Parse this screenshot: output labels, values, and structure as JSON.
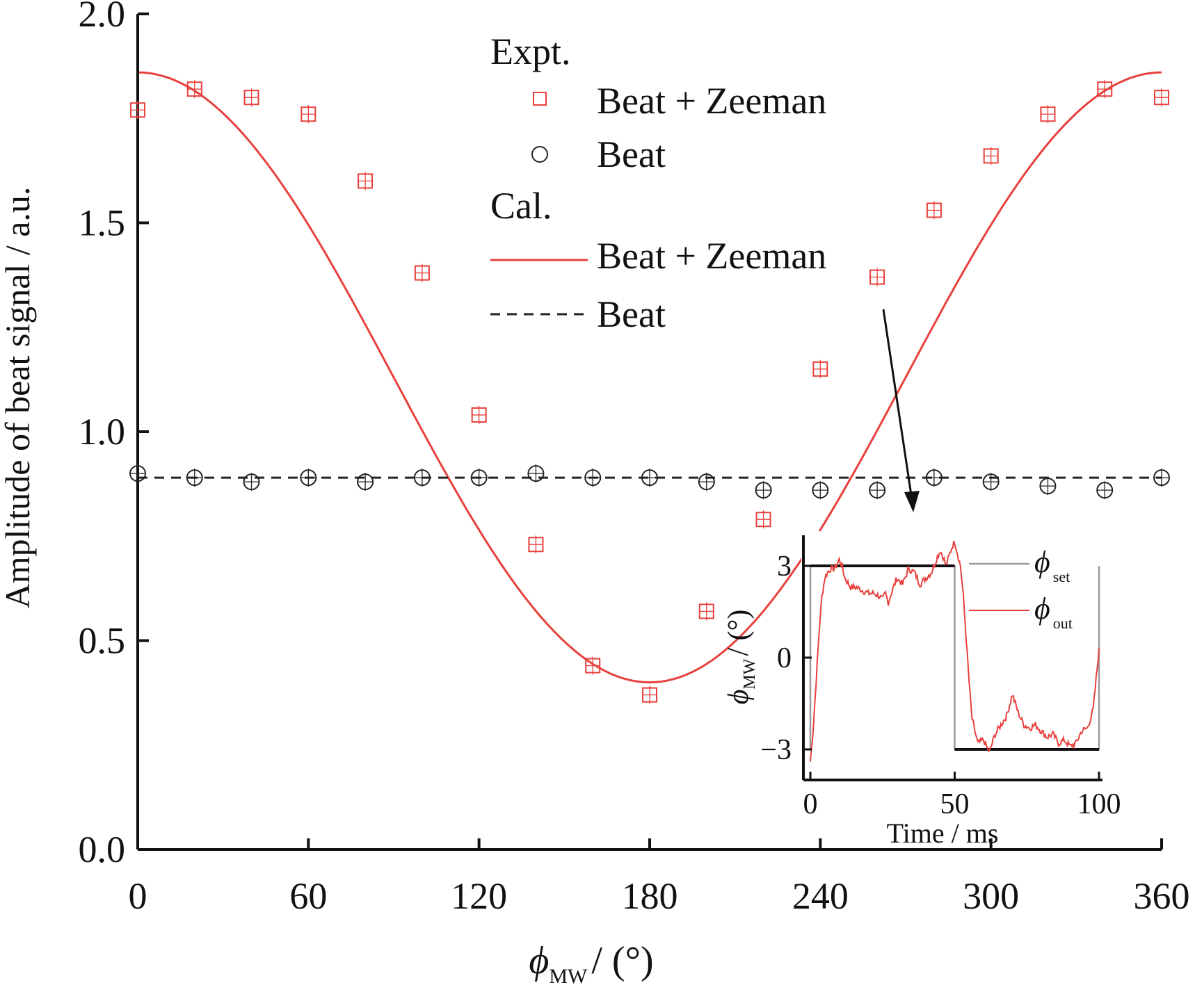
{
  "colors": {
    "zeeman": "#e8403c",
    "beat": "#222222",
    "axis": "#111111",
    "inset_set": "#9a9a9a"
  },
  "chart_data": [
    {
      "type": "scatter",
      "ylabel": "Amplitude of beat signal / a.u.",
      "xlabel_symbol": "ϕ",
      "xlabel_sub": "MW",
      "xlabel_unit": "/ (°)",
      "xlim": [
        0,
        360
      ],
      "ylim": [
        0,
        2.0
      ],
      "xticks": [
        0,
        60,
        120,
        180,
        240,
        300,
        360
      ],
      "yticks": [
        0.0,
        0.5,
        1.0,
        1.5,
        2.0
      ],
      "yticklabels": [
        "0.0",
        "0.5",
        "1.0",
        "1.5",
        "2.0"
      ],
      "legend": {
        "placement": "top-center",
        "expt_heading": "Expt.",
        "cal_heading": "Cal.",
        "entries": [
          {
            "label": "Beat + Zeeman",
            "marker": "square"
          },
          {
            "label": "Beat",
            "marker": "circle"
          },
          {
            "label": "Beat + Zeeman",
            "line": "solid"
          },
          {
            "label": "Beat",
            "line": "dashed"
          }
        ]
      },
      "series": [
        {
          "name": "Beat + Zeeman",
          "kind": "expt",
          "marker": "square",
          "x": [
            0,
            20,
            40,
            60,
            80,
            100,
            120,
            140,
            160,
            180,
            200,
            220,
            240,
            260,
            280,
            300,
            320,
            340,
            360
          ],
          "values": [
            1.77,
            1.82,
            1.8,
            1.76,
            1.6,
            1.38,
            1.04,
            0.73,
            0.44,
            0.37,
            0.57,
            0.79,
            1.15,
            1.37,
            1.53,
            1.66,
            1.76,
            1.82,
            1.8
          ]
        },
        {
          "name": "Beat",
          "kind": "expt",
          "marker": "circle",
          "x": [
            0,
            20,
            40,
            60,
            80,
            100,
            120,
            140,
            160,
            180,
            200,
            220,
            240,
            260,
            280,
            300,
            320,
            340,
            360
          ],
          "values": [
            0.9,
            0.89,
            0.88,
            0.89,
            0.88,
            0.89,
            0.89,
            0.9,
            0.89,
            0.89,
            0.88,
            0.86,
            0.86,
            0.86,
            0.89,
            0.88,
            0.87,
            0.86,
            0.89
          ]
        },
        {
          "name": "Beat + Zeeman",
          "kind": "cal",
          "line": "solid",
          "mean": 1.13,
          "amplitude": 0.73
        },
        {
          "name": "Beat",
          "kind": "cal",
          "line": "dashed",
          "level": 0.89
        }
      ]
    },
    {
      "type": "line",
      "inset": true,
      "xlabel": "Time / ms",
      "ylabel_symbol": "ϕ",
      "ylabel_sub": "MW",
      "ylabel_unit": "/ (°)",
      "xlim": [
        0,
        100
      ],
      "ylim": [
        -4,
        4
      ],
      "xticks": [
        0,
        50,
        100
      ],
      "xticklabels": [
        "0",
        "50",
        "100"
      ],
      "yticks": [
        3,
        0,
        -3
      ],
      "yticklabels": [
        "3",
        "0",
        "−3"
      ],
      "series": [
        {
          "name_symbol": "ϕ",
          "name_sub": "set",
          "x": [
            0,
            0,
            50,
            50,
            100,
            100
          ],
          "values": [
            -3,
            3,
            3,
            -3,
            -3,
            3
          ]
        },
        {
          "name_symbol": "ϕ",
          "name_sub": "out",
          "x": [
            0,
            1,
            2,
            3,
            4,
            5,
            6,
            7,
            8,
            9,
            10,
            11,
            12,
            14,
            16,
            18,
            20,
            22,
            24,
            25,
            26,
            27,
            28,
            30,
            32,
            34,
            36,
            38,
            40,
            42,
            44,
            45,
            46,
            47,
            48,
            49,
            50,
            51,
            52,
            53,
            54,
            55,
            56,
            58,
            60,
            62,
            64,
            66,
            68,
            70,
            72,
            74,
            76,
            78,
            80,
            82,
            84,
            86,
            88,
            90,
            92,
            94,
            96,
            98,
            100
          ],
          "values": [
            -3.4,
            -2.3,
            -0.8,
            0.8,
            2.0,
            2.6,
            2.8,
            2.9,
            2.9,
            3.0,
            3.2,
            3.0,
            2.6,
            2.3,
            2.3,
            2.2,
            2.1,
            2.1,
            2.0,
            1.9,
            2.1,
            1.8,
            2.1,
            2.6,
            2.4,
            2.9,
            2.8,
            2.4,
            2.6,
            2.8,
            3.3,
            3.5,
            3.3,
            3.0,
            3.3,
            3.6,
            3.8,
            3.4,
            3.0,
            2.0,
            0.6,
            -0.8,
            -2.0,
            -2.8,
            -2.7,
            -3.1,
            -2.5,
            -2.2,
            -1.9,
            -1.2,
            -1.8,
            -2.2,
            -2.3,
            -2.2,
            -2.4,
            -2.6,
            -2.5,
            -2.8,
            -2.7,
            -2.9,
            -2.8,
            -2.4,
            -2.3,
            -1.7,
            0.3
          ]
        }
      ]
    }
  ]
}
